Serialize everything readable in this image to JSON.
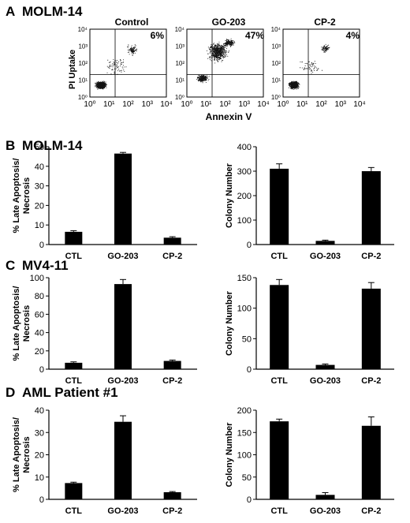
{
  "panels": [
    {
      "letter": "A",
      "title": "MOLM-14"
    },
    {
      "letter": "B",
      "title": "MOLM-14"
    },
    {
      "letter": "C",
      "title": "MV4-11"
    },
    {
      "letter": "D",
      "title": "AML Patient #1"
    }
  ],
  "flow": {
    "ylabel": "PI Uptake",
    "xlabel": "Annexin V",
    "tick_labels": [
      "10⁰",
      "10¹",
      "10²",
      "10³",
      "10⁴"
    ],
    "plots": [
      {
        "title": "Control",
        "percent": "6%"
      },
      {
        "title": "GO-203",
        "percent": "47%"
      },
      {
        "title": "CP-2",
        "percent": "4%"
      }
    ]
  },
  "chart_data": [
    {
      "type": "bar",
      "id": "B-apoptosis",
      "categories": [
        "CTL",
        "GO-203",
        "CP-2"
      ],
      "values": [
        6.5,
        46.5,
        3.5
      ],
      "errors": [
        0.6,
        0.6,
        0.5
      ],
      "ylabel": "% Late Apoptosis/ Necrosis",
      "ylim": [
        0,
        50
      ],
      "yticks": [
        0,
        10,
        20,
        30,
        40,
        50
      ]
    },
    {
      "type": "bar",
      "id": "B-colony",
      "categories": [
        "CTL",
        "GO-203",
        "CP-2"
      ],
      "values": [
        310,
        15,
        300
      ],
      "errors": [
        20,
        3,
        15
      ],
      "ylabel": "Colony Number",
      "ylim": [
        0,
        400
      ],
      "yticks": [
        0,
        100,
        200,
        300,
        400
      ]
    },
    {
      "type": "bar",
      "id": "C-apoptosis",
      "categories": [
        "CTL",
        "GO-203",
        "CP-2"
      ],
      "values": [
        7,
        93,
        9
      ],
      "errors": [
        1,
        5,
        1
      ],
      "ylabel": "% Late Apoptosis/ Necrosis",
      "ylim": [
        0,
        100
      ],
      "yticks": [
        0,
        20,
        40,
        60,
        80,
        100
      ]
    },
    {
      "type": "bar",
      "id": "C-colony",
      "categories": [
        "CTL",
        "GO-203",
        "CP-2"
      ],
      "values": [
        138,
        7,
        132
      ],
      "errors": [
        9,
        1.5,
        10
      ],
      "ylabel": "Colony Number",
      "ylim": [
        0,
        150
      ],
      "yticks": [
        0,
        50,
        100,
        150
      ]
    },
    {
      "type": "bar",
      "id": "D-apoptosis",
      "categories": [
        "CTL",
        "GO-203",
        "CP-2"
      ],
      "values": [
        7.3,
        34.8,
        3.2
      ],
      "errors": [
        0.4,
        2.7,
        0.3
      ],
      "ylabel": "% Late Apoptosis/ Necrosis",
      "ylim": [
        0,
        40
      ],
      "yticks": [
        0,
        10,
        20,
        30,
        40
      ]
    },
    {
      "type": "bar",
      "id": "D-colony",
      "categories": [
        "CTL",
        "GO-203",
        "CP-2"
      ],
      "values": [
        175,
        10,
        165
      ],
      "errors": [
        5,
        5,
        20
      ],
      "ylabel": "Colony Number",
      "ylim": [
        0,
        200
      ],
      "yticks": [
        0,
        50,
        100,
        150,
        200
      ]
    }
  ]
}
